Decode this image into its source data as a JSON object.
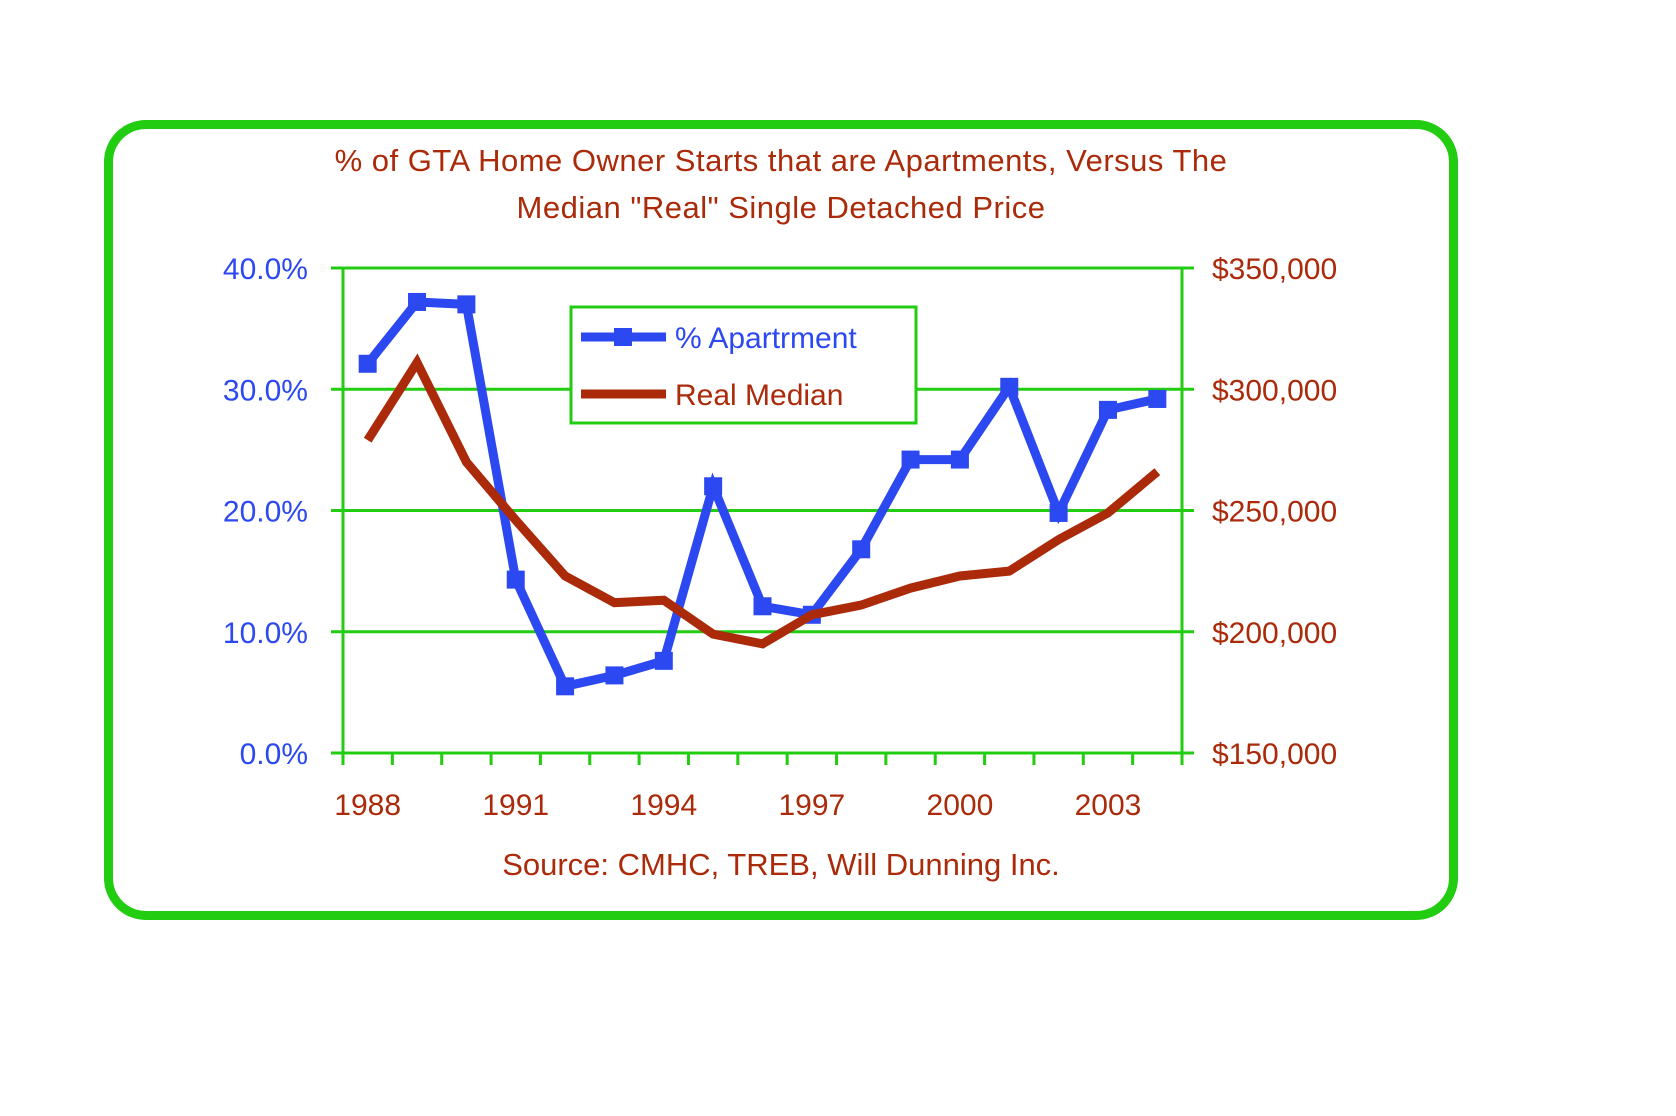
{
  "chart_data": {
    "type": "line",
    "title": "% of GTA Home Owner Starts that are Apartments, Versus The Median \"Real\" Single Detached Price",
    "title_lines": [
      "% of GTA Home Owner Starts that are Apartments, Versus The",
      "Median \"Real\" Single Detached Price"
    ],
    "source": "Source: CMHC, TREB, Will Dunning Inc.",
    "xlabel": "",
    "ylabel_left": "",
    "ylabel_right": "",
    "x": [
      1988,
      1989,
      1990,
      1991,
      1992,
      1993,
      1994,
      1995,
      1996,
      1997,
      1998,
      1999,
      2000,
      2001,
      2002,
      2003,
      2004
    ],
    "x_tick_labels": [
      "1988",
      "1991",
      "1994",
      "1997",
      "2000",
      "2003"
    ],
    "x_tick_label_years": [
      1988,
      1991,
      1994,
      1997,
      2000,
      2003
    ],
    "ylim_left": [
      0,
      40
    ],
    "ylim_right": [
      150000,
      350000
    ],
    "y_left_ticks": [
      "0.0%",
      "10.0%",
      "20.0%",
      "30.0%",
      "40.0%"
    ],
    "y_right_ticks": [
      "$150,000",
      "$200,000",
      "$250,000",
      "$300,000",
      "$350,000"
    ],
    "grid": true,
    "legend_position": "top-center",
    "series": [
      {
        "name": "% Apartrment",
        "axis": "left",
        "color": "#2c48f0",
        "marker": "square",
        "values": [
          32.1,
          37.2,
          37.0,
          14.3,
          5.5,
          6.4,
          7.6,
          22.0,
          12.1,
          11.4,
          16.8,
          24.2,
          24.2,
          30.2,
          19.8,
          28.3,
          29.2
        ]
      },
      {
        "name": "Real Median",
        "axis": "right",
        "color": "#aa2a0a",
        "marker": "none",
        "values": [
          279000,
          311000,
          270000,
          246000,
          223000,
          212000,
          213000,
          199000,
          195000,
          207000,
          211000,
          218000,
          223000,
          225000,
          238000,
          249000,
          266000
        ]
      }
    ]
  },
  "colors": {
    "frame": "#22cc11",
    "grid": "#22cc11",
    "title": "#aa2a0a"
  }
}
